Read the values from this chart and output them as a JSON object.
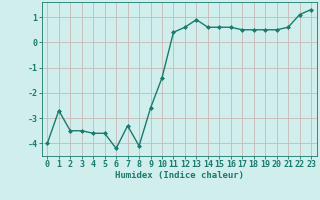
{
  "x": [
    0,
    1,
    2,
    3,
    4,
    5,
    6,
    7,
    8,
    9,
    10,
    11,
    12,
    13,
    14,
    15,
    16,
    17,
    18,
    19,
    20,
    21,
    22,
    23
  ],
  "y": [
    -4.0,
    -2.7,
    -3.5,
    -3.5,
    -3.6,
    -3.6,
    -4.2,
    -3.3,
    -4.1,
    -2.6,
    -1.4,
    0.4,
    0.6,
    0.9,
    0.6,
    0.6,
    0.6,
    0.5,
    0.5,
    0.5,
    0.5,
    0.6,
    1.1,
    1.3
  ],
  "line_color": "#1a7a6e",
  "marker": "D",
  "markersize": 2.0,
  "linewidth": 1.0,
  "bg_color": "#d0eeec",
  "grid_color": "#c8b8b8",
  "xlabel": "Humidex (Indice chaleur)",
  "xlabel_fontsize": 6.5,
  "tick_fontsize": 6.0,
  "ylim": [
    -4.5,
    1.6
  ],
  "xlim": [
    -0.5,
    23.5
  ],
  "yticks": [
    -4,
    -3,
    -2,
    -1,
    0,
    1
  ],
  "xtick_labels": [
    "0",
    "1",
    "2",
    "3",
    "4",
    "5",
    "6",
    "7",
    "8",
    "9",
    "10",
    "11",
    "12",
    "13",
    "14",
    "15",
    "16",
    "17",
    "18",
    "19",
    "20",
    "21",
    "22",
    "23"
  ]
}
